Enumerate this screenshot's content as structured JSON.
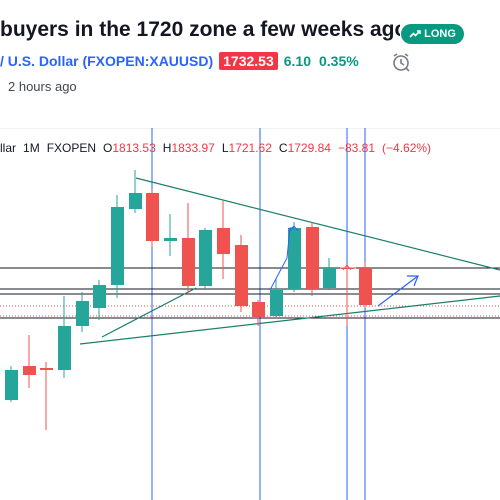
{
  "idea": {
    "title": "buyers in the 1720 zone a few weeks ago.",
    "badge_label": "LONG",
    "symbol": "/ U.S. Dollar (FXOPEN:XAUUSD)",
    "price": "1732.53",
    "change": "6.10",
    "change_pct": "0.35%",
    "time_ago": "2 hours ago",
    "icons": {
      "badge": "trending-up-icon",
      "clock": "clock-icon"
    }
  },
  "legend": {
    "symbol_suffix": "llar",
    "interval": "1M",
    "exchange": "FXOPEN",
    "o_label": "O",
    "o_value": "1813.53",
    "h_label": "H",
    "h_value": "1833.97",
    "l_label": "L",
    "l_value": "1721.62",
    "c_label": "C",
    "c_value": "1729.84",
    "change": "−83.81",
    "change_pct": "(−4.62%)"
  },
  "colors": {
    "up": "#26a69a",
    "down": "#ef5350",
    "vline": "#2962ff",
    "trend": "#1b7f6b",
    "arrow": "#2962ff",
    "badge": "#089981",
    "price_badge": "#f23645"
  }
}
